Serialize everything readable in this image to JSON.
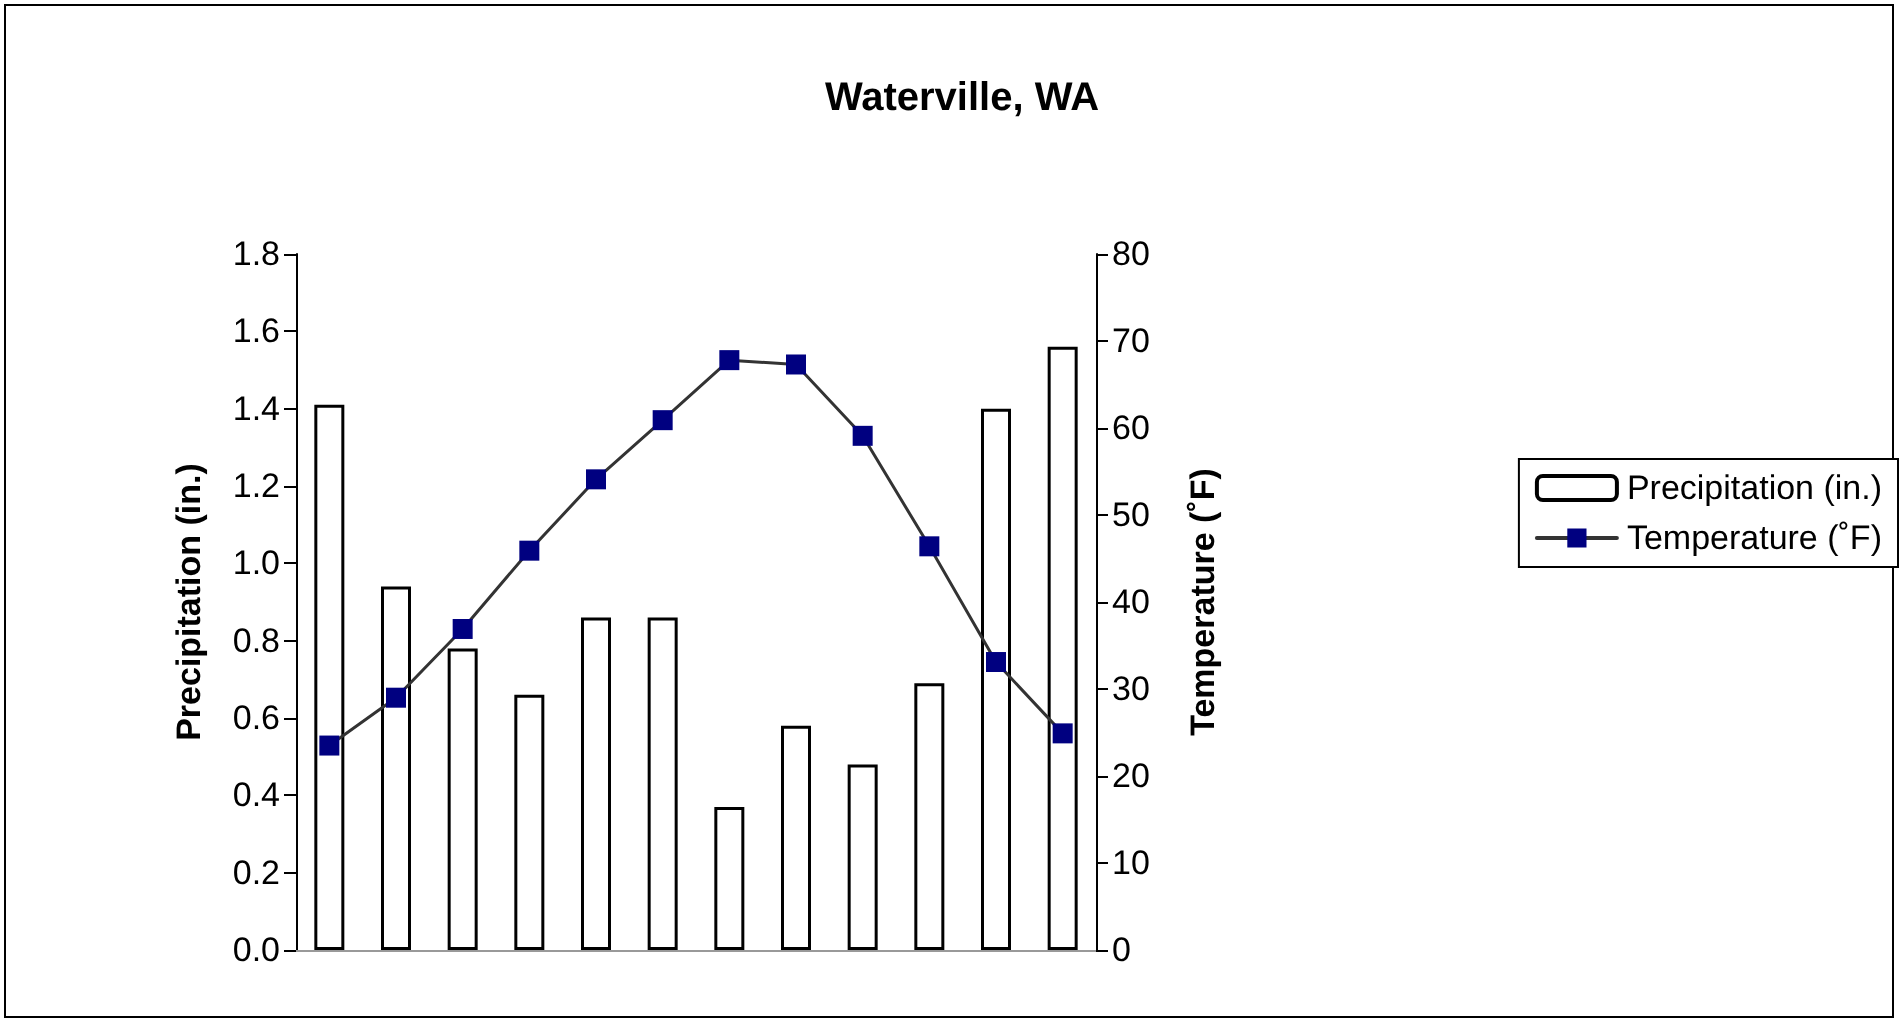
{
  "chart_data": {
    "type": "bar",
    "title": "Waterville, WA",
    "ylabel": "Precipitation (in.)",
    "y2label": "Temperature (˚F)",
    "categories": [
      null,
      null,
      null,
      null,
      null,
      null,
      null,
      null,
      null,
      null,
      null,
      null
    ],
    "series": [
      {
        "name": "Precipitation (in.)",
        "color": "#ffffff",
        "values": [
          1.41,
          0.94,
          0.78,
          0.66,
          0.86,
          0.86,
          0.37,
          0.58,
          0.48,
          0.69,
          1.4,
          1.56
        ]
      },
      {
        "name": "Temperature (˚F)",
        "type": "line",
        "axis": "y2",
        "color": "#000080",
        "marker": "square",
        "values": [
          23.5,
          29.0,
          36.9,
          45.9,
          54.1,
          60.9,
          67.8,
          67.3,
          59.1,
          46.4,
          33.1,
          24.9
        ]
      }
    ],
    "ylim": [
      0,
      1.8
    ],
    "yticks": [
      {
        "value": 0,
        "label": "0.0"
      },
      0.2,
      0.4,
      0.6,
      0.8,
      {
        "value": 1,
        "label": "1.0"
      },
      1.2,
      1.4,
      1.6,
      1.8
    ],
    "y2lim": [
      0,
      80
    ],
    "y2ticks": [
      0,
      10,
      20,
      30,
      40,
      50,
      60,
      70,
      80
    ],
    "grid": false,
    "legend": "right"
  }
}
